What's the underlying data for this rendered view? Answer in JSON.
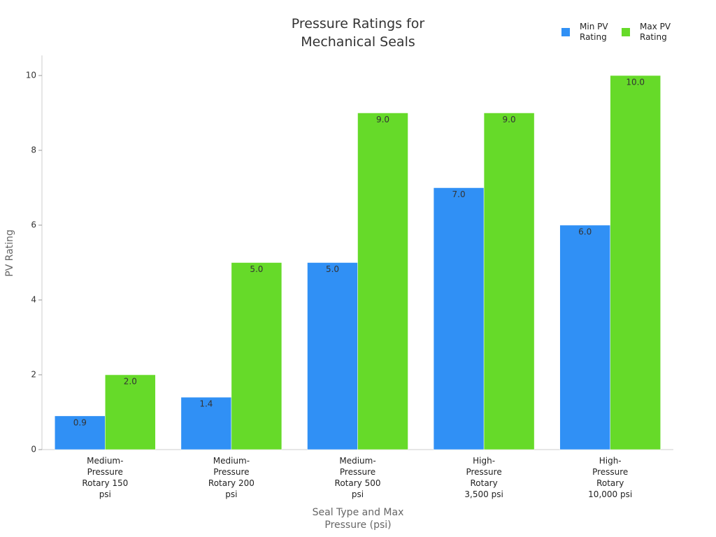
{
  "chart_data": {
    "type": "bar",
    "title": "Pressure Ratings for Mechanical Seals",
    "x_label": "Seal Type and Max Pressure (psi)",
    "y_label": "PV Rating",
    "categories": [
      "Medium-Pressure Rotary 150 psi",
      "Medium-Pressure Rotary 200 psi",
      "Medium-Pressure Rotary 500 psi",
      "High-Pressure Rotary 3,500 psi",
      "High-Pressure Rotary 10,000 psi"
    ],
    "series": [
      {
        "name": "Min PV Rating",
        "color": "#3090f5",
        "values": [
          0.9,
          1.4,
          5,
          7,
          6
        ],
        "value_labels": [
          "0.9",
          "1.4",
          "5.0",
          "7.0",
          "6.0"
        ]
      },
      {
        "name": "Max PV Rating",
        "color": "#66da29",
        "values": [
          2,
          5,
          9,
          9,
          10
        ],
        "value_labels": [
          "2.0",
          "5.0",
          "9.0",
          "9.0",
          "10.0"
        ]
      }
    ],
    "ylim": [
      0,
      10.5
    ],
    "yticks": [
      0,
      2,
      4,
      6,
      8,
      10
    ],
    "legend": "top-right"
  }
}
